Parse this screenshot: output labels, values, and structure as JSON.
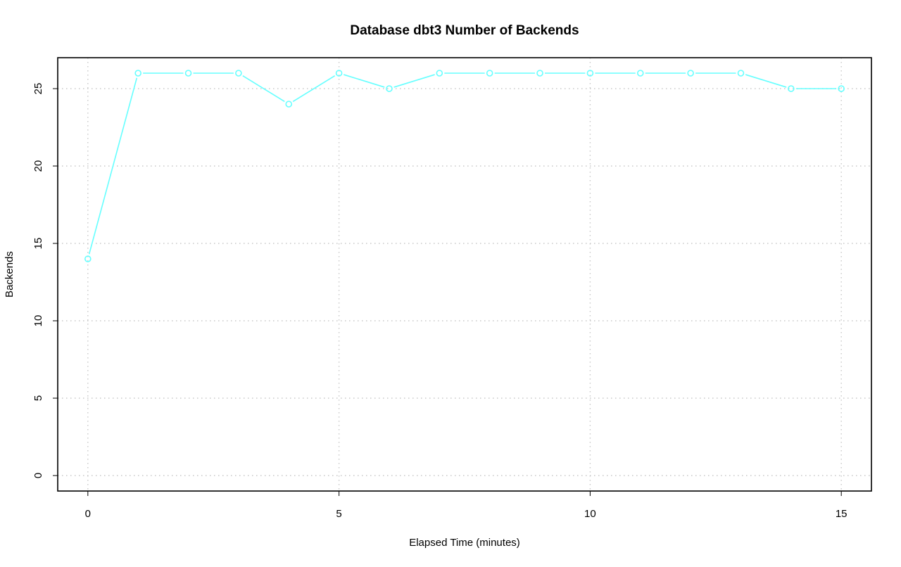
{
  "chart_data": {
    "type": "line",
    "title": "Database dbt3 Number of Backends",
    "xlabel": "Elapsed Time (minutes)",
    "ylabel": "Backends",
    "xlim": [
      -0.6,
      15.6
    ],
    "ylim": [
      -1,
      27
    ],
    "x_ticks": [
      0,
      5,
      10,
      15
    ],
    "y_ticks": [
      0,
      5,
      10,
      15,
      20,
      25
    ],
    "grid": true,
    "legend": "none",
    "series": [
      {
        "color": "#66ffff",
        "marker": "open-circle",
        "x": [
          0,
          1,
          2,
          3,
          4,
          5,
          6,
          7,
          8,
          9,
          10,
          11,
          12,
          13,
          14,
          15
        ],
        "values": [
          14,
          26,
          26,
          26,
          24,
          26,
          25,
          26,
          26,
          26,
          26,
          26,
          26,
          26,
          25,
          25
        ]
      }
    ]
  }
}
